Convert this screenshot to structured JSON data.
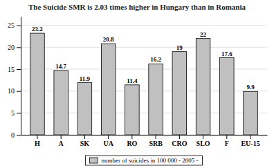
{
  "chart_data": {
    "type": "bar",
    "title": "The Suicide SMR is 2.03 times higher in Hungary  than in Romania",
    "categories": [
      "H",
      "A",
      "SK",
      "UA",
      "RO",
      "SRB",
      "CRO",
      "SLO",
      "F",
      "EU-15"
    ],
    "series": [
      {
        "name": "number of suicides in 100 000 - 2005 -",
        "color": "#c0c0c0",
        "values": [
          23.2,
          14.7,
          11.9,
          20.8,
          11.4,
          16.2,
          19,
          22,
          17.6,
          9.9
        ]
      }
    ],
    "ylim": [
      0,
      27
    ],
    "yticks": [
      0,
      5,
      10,
      15,
      20,
      25
    ],
    "grid": true,
    "legend": "bottom",
    "data_labels": true
  }
}
